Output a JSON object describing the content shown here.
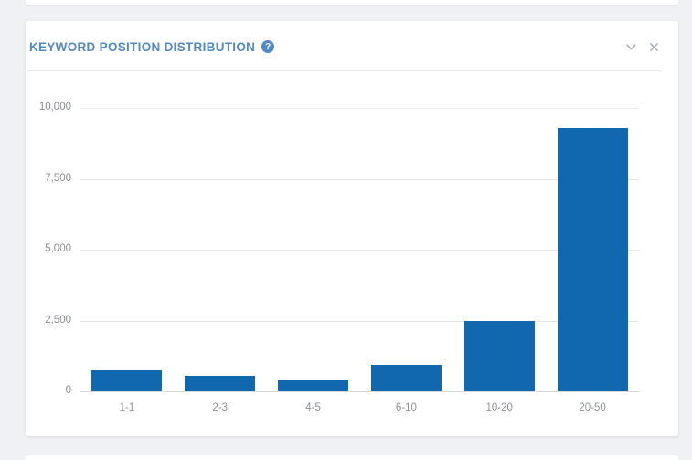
{
  "panel": {
    "title": "KEYWORD POSITION DISTRIBUTION",
    "help_glyph": "?",
    "title_color": "#5289c7",
    "icons": {
      "help": "question-mark-circle-icon",
      "collapse": "chevron-down-icon",
      "close": "close-icon"
    }
  },
  "chart_data": {
    "type": "bar",
    "title": "KEYWORD POSITION DISTRIBUTION",
    "categories": [
      "1-1",
      "2-3",
      "4-5",
      "6-10",
      "10-20",
      "20-50"
    ],
    "values": [
      730,
      540,
      380,
      930,
      2500,
      9300
    ],
    "xlabel": "",
    "ylabel": "",
    "ylim": [
      0,
      10000
    ],
    "yticks": [
      0,
      2500,
      5000,
      7500,
      10000
    ],
    "ytick_labels": [
      "0",
      "2,500",
      "5,000",
      "7,500",
      "10,000"
    ],
    "grid": true,
    "legend": false,
    "bar_color": "#1268ae",
    "gridline_color": "#e7e7e9",
    "axis_label_color": "#8b8e92"
  }
}
